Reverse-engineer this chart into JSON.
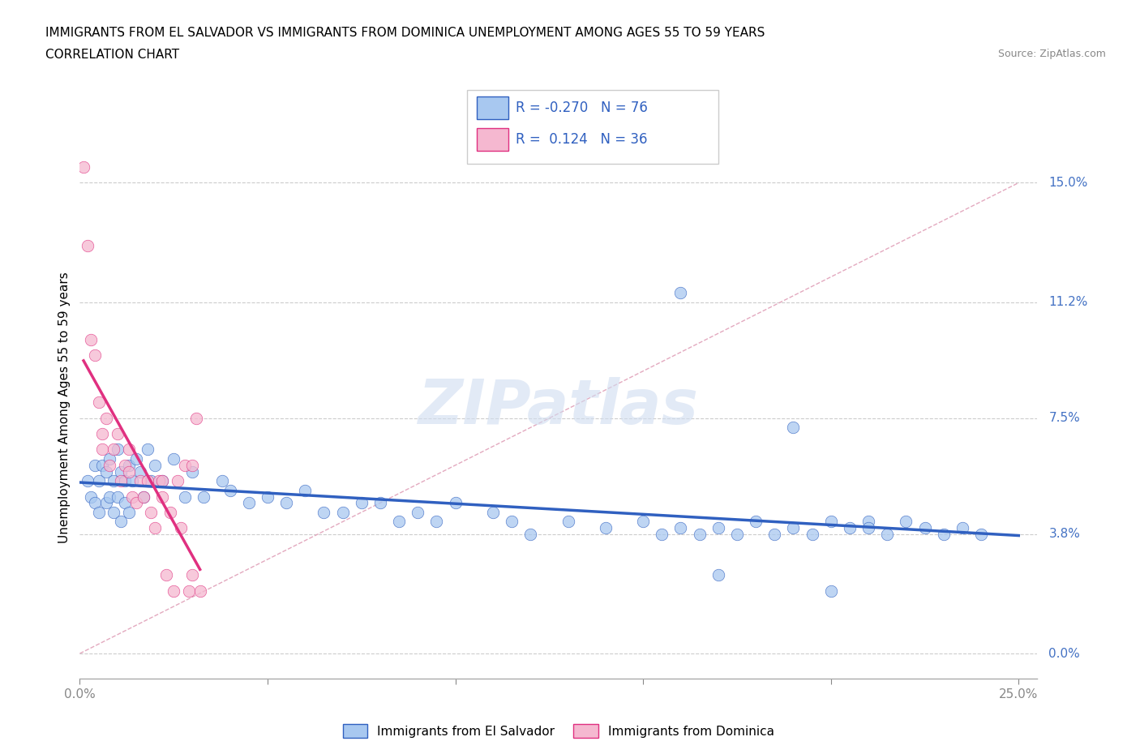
{
  "title_line1": "IMMIGRANTS FROM EL SALVADOR VS IMMIGRANTS FROM DOMINICA UNEMPLOYMENT AMONG AGES 55 TO 59 YEARS",
  "title_line2": "CORRELATION CHART",
  "source_text": "Source: ZipAtlas.com",
  "ylabel": "Unemployment Among Ages 55 to 59 years",
  "xlim": [
    0.0,
    0.255
  ],
  "ylim": [
    -0.008,
    0.165
  ],
  "yticks": [
    0.0,
    0.038,
    0.075,
    0.112,
    0.15
  ],
  "ytick_labels": [
    "0.0%",
    "3.8%",
    "7.5%",
    "11.2%",
    "15.0%"
  ],
  "xtick_vals": [
    0.0,
    0.05,
    0.1,
    0.15,
    0.2,
    0.25
  ],
  "xtick_labels": [
    "0.0%",
    "",
    "",
    "",
    "",
    "25.0%"
  ],
  "r_el_salvador": -0.27,
  "n_el_salvador": 76,
  "r_dominica": 0.124,
  "n_dominica": 36,
  "color_el_salvador": "#A8C8F0",
  "color_dominica": "#F5B8D0",
  "trend_color_el_salvador": "#3060C0",
  "trend_color_dominica": "#E03080",
  "ref_line_color": "#E0A0B8",
  "watermark": "ZIPatlas",
  "legend_label_el_salvador": "Immigrants from El Salvador",
  "legend_label_dominica": "Immigrants from Dominica",
  "el_salvador_x": [
    0.002,
    0.003,
    0.004,
    0.004,
    0.005,
    0.005,
    0.006,
    0.007,
    0.007,
    0.008,
    0.008,
    0.009,
    0.009,
    0.01,
    0.01,
    0.011,
    0.011,
    0.012,
    0.012,
    0.013,
    0.013,
    0.014,
    0.015,
    0.016,
    0.017,
    0.018,
    0.019,
    0.02,
    0.022,
    0.025,
    0.028,
    0.03,
    0.033,
    0.038,
    0.04,
    0.045,
    0.05,
    0.055,
    0.06,
    0.065,
    0.07,
    0.075,
    0.08,
    0.085,
    0.09,
    0.095,
    0.1,
    0.11,
    0.115,
    0.12,
    0.13,
    0.14,
    0.15,
    0.155,
    0.16,
    0.165,
    0.17,
    0.175,
    0.18,
    0.185,
    0.19,
    0.195,
    0.2,
    0.205,
    0.21,
    0.215,
    0.22,
    0.225,
    0.23,
    0.235,
    0.24,
    0.16,
    0.17,
    0.19,
    0.2,
    0.21
  ],
  "el_salvador_y": [
    0.055,
    0.05,
    0.06,
    0.048,
    0.055,
    0.045,
    0.06,
    0.058,
    0.048,
    0.062,
    0.05,
    0.055,
    0.045,
    0.065,
    0.05,
    0.058,
    0.042,
    0.055,
    0.048,
    0.06,
    0.045,
    0.055,
    0.062,
    0.058,
    0.05,
    0.065,
    0.055,
    0.06,
    0.055,
    0.062,
    0.05,
    0.058,
    0.05,
    0.055,
    0.052,
    0.048,
    0.05,
    0.048,
    0.052,
    0.045,
    0.045,
    0.048,
    0.048,
    0.042,
    0.045,
    0.042,
    0.048,
    0.045,
    0.042,
    0.038,
    0.042,
    0.04,
    0.042,
    0.038,
    0.04,
    0.038,
    0.04,
    0.038,
    0.042,
    0.038,
    0.04,
    0.038,
    0.042,
    0.04,
    0.042,
    0.038,
    0.042,
    0.04,
    0.038,
    0.04,
    0.038,
    0.115,
    0.025,
    0.072,
    0.02,
    0.04
  ],
  "dominica_x": [
    0.001,
    0.002,
    0.003,
    0.004,
    0.005,
    0.006,
    0.006,
    0.007,
    0.008,
    0.009,
    0.01,
    0.011,
    0.012,
    0.013,
    0.013,
    0.014,
    0.015,
    0.016,
    0.017,
    0.018,
    0.019,
    0.02,
    0.021,
    0.022,
    0.022,
    0.023,
    0.024,
    0.025,
    0.026,
    0.027,
    0.028,
    0.029,
    0.03,
    0.03,
    0.031,
    0.032
  ],
  "dominica_y": [
    0.155,
    0.13,
    0.1,
    0.095,
    0.08,
    0.07,
    0.065,
    0.075,
    0.06,
    0.065,
    0.07,
    0.055,
    0.06,
    0.058,
    0.065,
    0.05,
    0.048,
    0.055,
    0.05,
    0.055,
    0.045,
    0.04,
    0.055,
    0.05,
    0.055,
    0.025,
    0.045,
    0.02,
    0.055,
    0.04,
    0.06,
    0.02,
    0.025,
    0.06,
    0.075,
    0.02
  ]
}
